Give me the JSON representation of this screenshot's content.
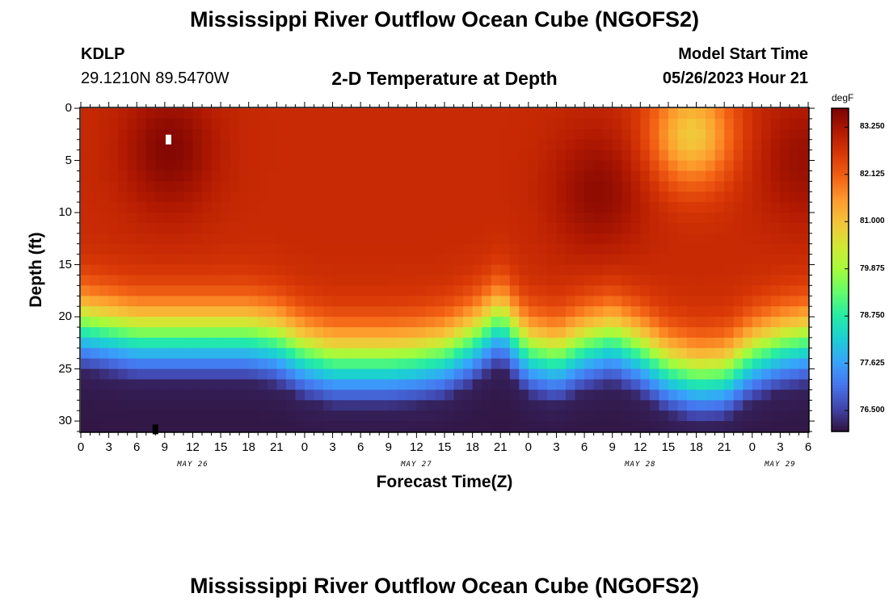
{
  "header": {
    "title": "Mississippi River Outflow Ocean Cube (NGOFS2)",
    "station_id": "KDLP",
    "station_coords": "29.1210N  89.5470W",
    "subtitle": "2-D Temperature at Depth",
    "model_start_label": "Model Start Time",
    "model_start_value": "05/26/2023 Hour 21"
  },
  "footer": {
    "title": "Mississippi River Outflow Ocean Cube (NGOFS2)"
  },
  "chart_data": {
    "type": "heatmap",
    "title": "2-D Temperature at Depth",
    "xlabel": "Forecast Time(Z)",
    "ylabel": "Depth (ft)",
    "x_hours": [
      0,
      78
    ],
    "xlim": [
      0,
      78
    ],
    "ylim": [
      31,
      0
    ],
    "x_tick_labels": [
      "0",
      "3",
      "6",
      "9",
      "12",
      "15",
      "18",
      "21",
      "0",
      "3",
      "6",
      "9",
      "12",
      "15",
      "18",
      "21",
      "0",
      "3",
      "6",
      "9",
      "12",
      "15",
      "18",
      "21",
      "0",
      "3",
      "6"
    ],
    "y_tick_labels": [
      "0",
      "5",
      "10",
      "15",
      "20",
      "25",
      "30"
    ],
    "y_tick_values": [
      0,
      5,
      10,
      15,
      20,
      25,
      30
    ],
    "date_labels": [
      {
        "text": "MAY 26",
        "hour": 12
      },
      {
        "text": "MAY 27",
        "hour": 36
      },
      {
        "text": "MAY 28",
        "hour": 60
      },
      {
        "text": "MAY 29",
        "hour": 75
      }
    ],
    "colorbar": {
      "unit": "degF",
      "min": 76.0,
      "max": 83.7,
      "tick_labels": [
        "83.250",
        "82.125",
        "81.000",
        "79.875",
        "78.750",
        "77.625",
        "76.500"
      ],
      "tick_values": [
        83.25,
        82.125,
        81.0,
        79.875,
        78.75,
        77.625,
        76.5
      ],
      "colors": [
        "#30123b",
        "#4145ab",
        "#4675ed",
        "#39a2fc",
        "#1bcfd4",
        "#24eca6",
        "#61fc6c",
        "#a4fc3b",
        "#d1e834",
        "#f3c63a",
        "#fe9b2d",
        "#f36315",
        "#d93806",
        "#b11901",
        "#7a0403"
      ]
    },
    "thermocline_depth_ft": {
      "hours": [
        0,
        3,
        6,
        9,
        12,
        15,
        18,
        21,
        24,
        27,
        30,
        33,
        36,
        39,
        42,
        45,
        48,
        51,
        54,
        57,
        60,
        63,
        66,
        69,
        72,
        75,
        78
      ],
      "values": [
        19,
        19.5,
        20,
        20,
        20,
        20,
        20,
        20.5,
        21.8,
        22.5,
        22.5,
        22.5,
        22.3,
        21.8,
        20.5,
        18.5,
        21.5,
        22.2,
        21,
        20.3,
        21.5,
        23.2,
        24,
        23.8,
        22,
        21,
        20.5
      ]
    },
    "warm_cores": [
      {
        "hour": 9.5,
        "depth_ft": 4,
        "temp_degF": 83.6
      },
      {
        "hour": 55.5,
        "depth_ft": 8,
        "temp_degF": 83.5
      },
      {
        "hour": 77.5,
        "depth_ft": 5,
        "temp_degF": 83.4
      }
    ],
    "cool_surface_patch": {
      "hour": 65.5,
      "depth_ft": 2.5,
      "temp_degF": 80.9
    },
    "markers": [
      {
        "hour": 9.4,
        "depth_ft": 3,
        "color": "#ffffff"
      },
      {
        "hour": 8.0,
        "depth_ft": 30.8,
        "color": "#000000"
      }
    ]
  }
}
